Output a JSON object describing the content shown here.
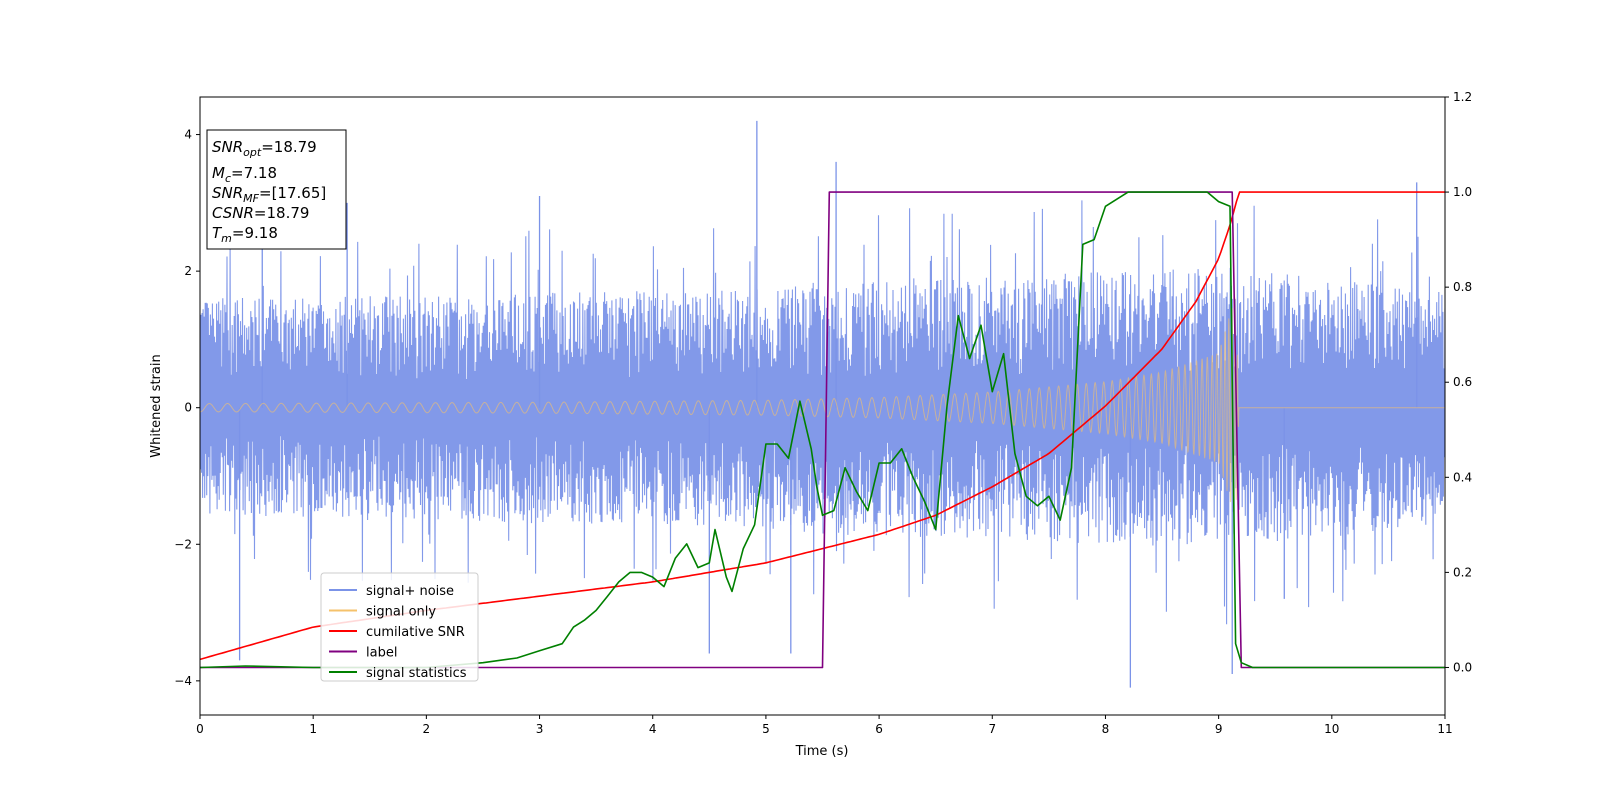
{
  "chart_data": {
    "type": "line",
    "xlabel": "Time (s)",
    "ylabel": "Whitened strain",
    "xlim": [
      0,
      11
    ],
    "ylim": [
      -4.5,
      4.55
    ],
    "y2lim": [
      -0.1,
      1.2
    ],
    "grid": false,
    "legend_placement": "lower-left",
    "x_ticks": [
      "0",
      "1",
      "2",
      "3",
      "4",
      "5",
      "6",
      "7",
      "8",
      "9",
      "10",
      "11"
    ],
    "y_ticks": [
      "−4",
      "−2",
      "0",
      "2",
      "4"
    ],
    "y_tick_values": [
      -4,
      -2,
      0,
      2,
      4
    ],
    "y2_ticks": [
      "0.0",
      "0.2",
      "0.4",
      "0.6",
      "0.8",
      "1.0",
      "1.2"
    ],
    "y2_tick_values": [
      0.0,
      0.2,
      0.4,
      0.6,
      0.8,
      1.0,
      1.2
    ],
    "info_box": {
      "snr_opt": {
        "sym": "SNR",
        "sub": "opt",
        "value": "=18.79"
      },
      "mc": {
        "sym": "M",
        "sub": "c",
        "value": "=7.18"
      },
      "snr_mf": {
        "sym": "SNR",
        "sub": "MF",
        "value": "=[17.65]"
      },
      "csnr": {
        "sym": "CSNR",
        "sub": "",
        "value": "=18.79"
      },
      "tm": {
        "sym": "T",
        "sub": "m",
        "value": "=9.18"
      }
    },
    "series": [
      {
        "name": "signal+ noise",
        "axis": "left",
        "color": "#7b93e8",
        "envelope": [
          [
            0,
            1.6
          ],
          [
            4.9,
            1.75
          ],
          [
            5.5,
            1.85
          ],
          [
            8.0,
            2.0
          ],
          [
            9.15,
            2.05
          ],
          [
            11,
            1.7
          ]
        ],
        "spikes": [
          [
            0.55,
            2.6
          ],
          [
            0.35,
            -3.7
          ],
          [
            4.92,
            4.2
          ],
          [
            5.62,
            3.6
          ],
          [
            4.5,
            -3.6
          ],
          [
            5.22,
            -3.6
          ],
          [
            8.22,
            -4.1
          ],
          [
            9.12,
            -3.9
          ],
          [
            9.58,
            -2.8
          ],
          [
            10.75,
            3.3
          ],
          [
            1.3,
            3.0
          ],
          [
            3.0,
            3.1
          ]
        ]
      },
      {
        "name": "signal only",
        "axis": "left",
        "color": "#f5c26b",
        "amplitude": [
          [
            0,
            0.06
          ],
          [
            3,
            0.08
          ],
          [
            5,
            0.11
          ],
          [
            6,
            0.15
          ],
          [
            7,
            0.23
          ],
          [
            8,
            0.38
          ],
          [
            8.5,
            0.52
          ],
          [
            9.0,
            0.8
          ],
          [
            9.15,
            1.65
          ],
          [
            9.18,
            0
          ]
        ],
        "end_value": 0
      },
      {
        "name": "cumilative SNR",
        "axis": "right",
        "color": "#ff0000",
        "x": [
          0,
          1,
          2,
          3,
          4,
          5,
          5.5,
          6,
          6.5,
          7,
          7.5,
          8,
          8.5,
          8.8,
          9.0,
          9.1,
          9.18,
          9.25,
          11
        ],
        "y": [
          0.017,
          0.085,
          0.12,
          0.15,
          0.18,
          0.22,
          0.25,
          0.28,
          0.32,
          0.38,
          0.45,
          0.55,
          0.67,
          0.77,
          0.86,
          0.93,
          1.0,
          1.0,
          1.0
        ]
      },
      {
        "name": "label",
        "axis": "right",
        "color": "#800080",
        "x": [
          0,
          5.5,
          5.56,
          9.12,
          9.2,
          11
        ],
        "y": [
          0.0,
          0.0,
          1.0,
          1.0,
          0.0,
          0.0
        ]
      },
      {
        "name": "signal statistics",
        "axis": "right",
        "color": "#008000",
        "x": [
          0,
          0.4,
          1.0,
          2.0,
          2.5,
          2.8,
          3.0,
          3.2,
          3.3,
          3.4,
          3.5,
          3.6,
          3.7,
          3.8,
          3.9,
          4.0,
          4.1,
          4.2,
          4.3,
          4.4,
          4.5,
          4.55,
          4.65,
          4.7,
          4.8,
          4.9,
          5.0,
          5.1,
          5.2,
          5.3,
          5.4,
          5.45,
          5.5,
          5.6,
          5.7,
          5.8,
          5.9,
          6.0,
          6.1,
          6.2,
          6.3,
          6.4,
          6.5,
          6.6,
          6.7,
          6.8,
          6.9,
          7.0,
          7.1,
          7.2,
          7.3,
          7.4,
          7.5,
          7.6,
          7.7,
          7.8,
          7.9,
          8.0,
          8.2,
          8.5,
          8.9,
          9.0,
          9.1,
          9.15,
          9.2,
          9.3,
          11
        ],
        "y": [
          0.0,
          0.003,
          0.0,
          0.0,
          0.01,
          0.02,
          0.035,
          0.05,
          0.085,
          0.1,
          0.12,
          0.15,
          0.18,
          0.2,
          0.2,
          0.19,
          0.17,
          0.23,
          0.26,
          0.21,
          0.22,
          0.29,
          0.19,
          0.16,
          0.25,
          0.3,
          0.47,
          0.47,
          0.44,
          0.56,
          0.46,
          0.38,
          0.32,
          0.33,
          0.42,
          0.37,
          0.33,
          0.43,
          0.43,
          0.46,
          0.4,
          0.35,
          0.29,
          0.55,
          0.74,
          0.65,
          0.72,
          0.58,
          0.66,
          0.45,
          0.36,
          0.34,
          0.36,
          0.31,
          0.42,
          0.89,
          0.9,
          0.97,
          1.0,
          1.0,
          1.0,
          0.98,
          0.97,
          0.05,
          0.01,
          0.0,
          0.0
        ]
      }
    ]
  }
}
